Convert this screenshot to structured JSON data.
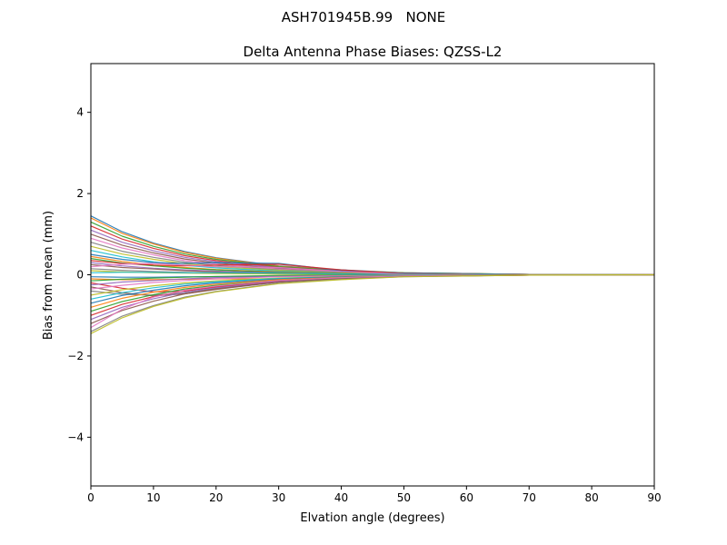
{
  "figure": {
    "suptitle": "ASH701945B.99   NONE",
    "axes_title": "Delta Antenna Phase Biases: QZSS-L2"
  },
  "chart_data": {
    "type": "line",
    "title": "Delta Antenna Phase Biases: QZSS-L2",
    "xlabel": "Elvation angle (degrees)",
    "ylabel": "Bias from mean (mm)",
    "xlim": [
      0,
      90
    ],
    "ylim": [
      -5.2,
      5.2
    ],
    "xticks": [
      0,
      10,
      20,
      30,
      40,
      50,
      60,
      70,
      80,
      90
    ],
    "yticks": [
      -4,
      -2,
      0,
      2,
      4
    ],
    "ytick_labels": [
      "−4",
      "−2",
      "0",
      "2",
      "4"
    ],
    "grid": false,
    "legend": "none",
    "palette": [
      "#1f77b4",
      "#ff7f0e",
      "#2ca02c",
      "#d62728",
      "#9467bd",
      "#8c564b",
      "#e377c2",
      "#7f7f7f",
      "#bcbd22",
      "#17becf"
    ],
    "x": [
      0,
      5,
      10,
      15,
      20,
      30,
      40,
      50,
      70,
      90
    ],
    "series": [
      {
        "values": [
          1.45,
          1.06,
          0.78,
          0.57,
          0.42,
          0.22,
          0.12,
          0.05,
          0.01,
          0
        ]
      },
      {
        "values": [
          1.4,
          1.02,
          0.76,
          0.55,
          0.41,
          0.21,
          0.11,
          0.05,
          0.01,
          0
        ]
      },
      {
        "values": [
          1.3,
          0.95,
          0.7,
          0.51,
          0.38,
          0.2,
          0.1,
          0.05,
          0.01,
          0
        ]
      },
      {
        "values": [
          1.2,
          0.88,
          0.65,
          0.47,
          0.35,
          0.18,
          0.09,
          0.04,
          0.01,
          0
        ]
      },
      {
        "values": [
          1.1,
          0.8,
          0.59,
          0.43,
          0.32,
          0.17,
          0.09,
          0.04,
          0.01,
          0
        ]
      },
      {
        "values": [
          1.0,
          0.73,
          0.54,
          0.39,
          0.29,
          0.15,
          0.08,
          0.04,
          0.01,
          0
        ]
      },
      {
        "values": [
          0.9,
          0.66,
          0.49,
          0.35,
          0.26,
          0.14,
          0.07,
          0.03,
          0.01,
          0
        ]
      },
      {
        "values": [
          0.8,
          0.58,
          0.43,
          0.31,
          0.23,
          0.12,
          0.06,
          0.03,
          0,
          0
        ]
      },
      {
        "values": [
          0.7,
          0.51,
          0.38,
          0.27,
          0.2,
          0.11,
          0.05,
          0.03,
          0,
          0
        ]
      },
      {
        "values": [
          0.6,
          0.44,
          0.32,
          0.23,
          0.17,
          0.09,
          0.05,
          0.02,
          0,
          0
        ]
      },
      {
        "values": [
          0.5,
          0.38,
          0.3,
          0.28,
          0.3,
          0.28,
          0.1,
          0.04,
          0.01,
          0
        ]
      },
      {
        "values": [
          0.45,
          0.33,
          0.24,
          0.18,
          0.13,
          0.07,
          0.04,
          0.02,
          0,
          0
        ]
      },
      {
        "values": [
          0.4,
          0.29,
          0.22,
          0.16,
          0.12,
          0.06,
          0.03,
          0.01,
          0,
          0
        ]
      },
      {
        "values": [
          0.35,
          0.28,
          0.24,
          0.22,
          0.24,
          0.26,
          0.12,
          0.03,
          0,
          0
        ]
      },
      {
        "values": [
          0.3,
          0.22,
          0.16,
          0.12,
          0.09,
          0.05,
          0.02,
          0.01,
          0,
          0
        ]
      },
      {
        "values": [
          0.25,
          0.18,
          0.14,
          0.1,
          0.07,
          0.04,
          0.02,
          0.01,
          0,
          0
        ]
      },
      {
        "values": [
          0.2,
          0.26,
          0.28,
          0.24,
          0.2,
          0.18,
          0.08,
          0.02,
          0,
          0
        ]
      },
      {
        "values": [
          0.15,
          0.11,
          0.08,
          0.06,
          0.04,
          0.02,
          0.01,
          0,
          0,
          0
        ]
      },
      {
        "values": [
          0.1,
          0.07,
          0.05,
          0.04,
          0.03,
          0.02,
          0.01,
          0,
          0,
          0
        ]
      },
      {
        "values": [
          0.05,
          0.06,
          0.06,
          0.05,
          0.05,
          0.04,
          0.02,
          0.01,
          0,
          0
        ]
      },
      {
        "values": [
          -0.05,
          -0.06,
          -0.06,
          -0.05,
          -0.05,
          -0.04,
          -0.02,
          -0.01,
          0,
          0
        ]
      },
      {
        "values": [
          -0.1,
          -0.12,
          -0.12,
          -0.11,
          -0.1,
          -0.1,
          -0.08,
          -0.04,
          -0.01,
          0
        ]
      },
      {
        "values": [
          -0.15,
          -0.11,
          -0.08,
          -0.06,
          -0.04,
          -0.02,
          -0.01,
          0,
          0,
          0
        ]
      },
      {
        "values": [
          -0.2,
          -0.33,
          -0.42,
          -0.4,
          -0.3,
          -0.15,
          -0.06,
          -0.02,
          0,
          0
        ]
      },
      {
        "values": [
          -0.25,
          -0.18,
          -0.14,
          -0.1,
          -0.07,
          -0.04,
          -0.02,
          -0.01,
          0,
          0
        ]
      },
      {
        "values": [
          -0.3,
          -0.44,
          -0.52,
          -0.47,
          -0.36,
          -0.18,
          -0.07,
          -0.03,
          0,
          0
        ]
      },
      {
        "values": [
          -0.35,
          -0.26,
          -0.19,
          -0.14,
          -0.1,
          -0.05,
          -0.03,
          -0.01,
          0,
          0
        ]
      },
      {
        "values": [
          -0.4,
          -0.48,
          -0.5,
          -0.44,
          -0.33,
          -0.16,
          -0.06,
          -0.02,
          0,
          0
        ]
      },
      {
        "values": [
          -0.5,
          -0.37,
          -0.27,
          -0.2,
          -0.15,
          -0.08,
          -0.04,
          -0.02,
          0,
          0
        ]
      },
      {
        "values": [
          -0.6,
          -0.44,
          -0.32,
          -0.23,
          -0.17,
          -0.09,
          -0.05,
          -0.02,
          0,
          0
        ]
      },
      {
        "values": [
          -0.7,
          -0.51,
          -0.38,
          -0.27,
          -0.2,
          -0.11,
          -0.05,
          -0.03,
          0,
          0
        ]
      },
      {
        "values": [
          -0.8,
          -0.58,
          -0.43,
          -0.31,
          -0.23,
          -0.12,
          -0.06,
          -0.03,
          0,
          0
        ]
      },
      {
        "values": [
          -0.9,
          -0.66,
          -0.49,
          -0.35,
          -0.26,
          -0.14,
          -0.07,
          -0.03,
          -0.01,
          0
        ]
      },
      {
        "values": [
          -1.0,
          -0.73,
          -0.54,
          -0.39,
          -0.29,
          -0.15,
          -0.08,
          -0.04,
          -0.01,
          0
        ]
      },
      {
        "values": [
          -1.1,
          -0.8,
          -0.59,
          -0.43,
          -0.32,
          -0.17,
          -0.09,
          -0.04,
          -0.01,
          0
        ]
      },
      {
        "values": [
          -1.2,
          -0.88,
          -0.65,
          -0.47,
          -0.35,
          -0.18,
          -0.09,
          -0.04,
          -0.01,
          0
        ]
      },
      {
        "values": [
          -1.3,
          -0.85,
          -0.55,
          -0.38,
          -0.28,
          -0.14,
          -0.07,
          -0.03,
          -0.01,
          0
        ]
      },
      {
        "values": [
          -1.4,
          -1.02,
          -0.76,
          -0.55,
          -0.41,
          -0.21,
          -0.11,
          -0.05,
          -0.01,
          0
        ]
      },
      {
        "values": [
          -1.45,
          -1.06,
          -0.78,
          -0.57,
          -0.42,
          -0.22,
          -0.12,
          -0.05,
          -0.01,
          0
        ]
      }
    ]
  }
}
